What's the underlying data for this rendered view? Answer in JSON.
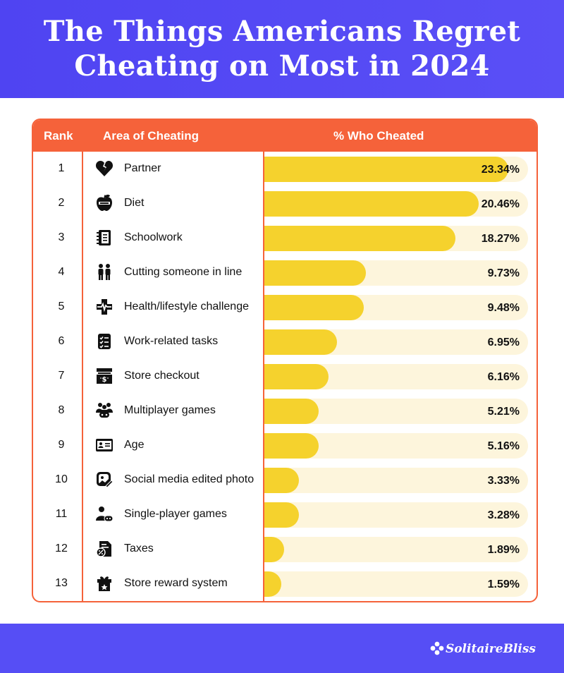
{
  "title_line1": "The Things Americans Regret",
  "title_line2": "Cheating on Most in 2024",
  "brand": "SolitaireBliss",
  "colors": {
    "header": "#4f44f2",
    "accent": "#f5623a",
    "bar": "#f5d22d",
    "track": "#fdf5dc",
    "footer": "#564ef5"
  },
  "chart_data": {
    "type": "table",
    "columns": [
      "Rank",
      "Area of Cheating",
      "% Who Cheated"
    ],
    "rows": [
      {
        "rank": "1",
        "area": "Partner",
        "value": 23.34,
        "label": "23.34%",
        "icon": "broken-heart-icon"
      },
      {
        "rank": "2",
        "area": "Diet",
        "value": 20.46,
        "label": "20.46%",
        "icon": "diet-apple-icon"
      },
      {
        "rank": "3",
        "area": "Schoolwork",
        "value": 18.27,
        "label": "18.27%",
        "icon": "notebook-icon"
      },
      {
        "rank": "4",
        "area": "Cutting someone in line",
        "value": 9.73,
        "label": "9.73%",
        "icon": "people-in-line-icon"
      },
      {
        "rank": "5",
        "area": "Health/lifestyle challenge",
        "value": 9.48,
        "label": "9.48%",
        "icon": "health-cross-icon"
      },
      {
        "rank": "6",
        "area": "Work-related tasks",
        "value": 6.95,
        "label": "6.95%",
        "icon": "checklist-icon"
      },
      {
        "rank": "7",
        "area": "Store checkout",
        "value": 6.16,
        "label": "6.16%",
        "icon": "cash-register-icon"
      },
      {
        "rank": "8",
        "area": "Multiplayer games",
        "value": 5.21,
        "label": "5.21%",
        "icon": "multiplayer-icon"
      },
      {
        "rank": "9",
        "area": "Age",
        "value": 5.16,
        "label": "5.16%",
        "icon": "id-card-icon"
      },
      {
        "rank": "10",
        "area": "Social media edited photo",
        "value": 3.33,
        "label": "3.33%",
        "icon": "edited-photo-icon"
      },
      {
        "rank": "11",
        "area": "Single-player games",
        "value": 3.28,
        "label": "3.28%",
        "icon": "gamer-icon"
      },
      {
        "rank": "12",
        "area": "Taxes",
        "value": 1.89,
        "label": "1.89%",
        "icon": "tax-document-icon"
      },
      {
        "rank": "13",
        "area": "Store reward system",
        "value": 1.59,
        "label": "1.59%",
        "icon": "gift-star-icon"
      }
    ]
  }
}
